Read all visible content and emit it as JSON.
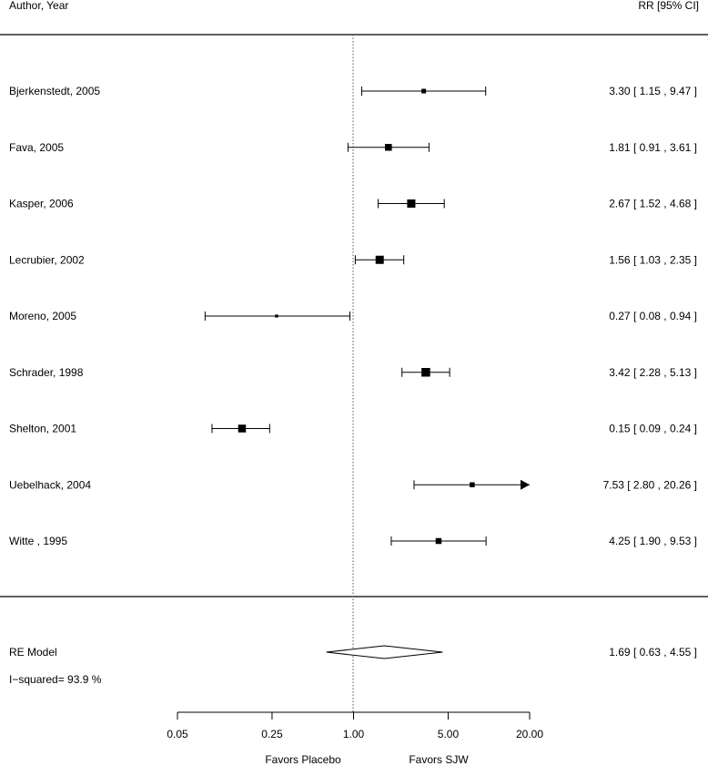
{
  "chart_data": {
    "type": "forest",
    "headers": {
      "left": "Author, Year",
      "right": "RR [95% CI]"
    },
    "measure": "RR",
    "log_scale": true,
    "x_ticks": [
      0.05,
      0.25,
      1.0,
      5.0,
      20.0
    ],
    "x_tick_labels": [
      "0.05",
      "0.25",
      "1.00",
      "5.00",
      "20.00"
    ],
    "xlim": [
      0.05,
      20.0
    ],
    "reference_line": 1.0,
    "favors": {
      "left": "Favors Placebo",
      "right": "Favors SJW"
    },
    "studies": [
      {
        "label": "Bjerkenstedt, 2005",
        "rr": 3.3,
        "lower": 1.15,
        "upper": 9.47,
        "ci_text": "3.30 [ 1.15 ,  9.47 ]",
        "weight": 0.7
      },
      {
        "label": "Fava, 2005",
        "rr": 1.81,
        "lower": 0.91,
        "upper": 3.61,
        "ci_text": "1.81 [ 0.91 ,  3.61 ]",
        "weight": 1.2
      },
      {
        "label": "Kasper, 2006",
        "rr": 2.67,
        "lower": 1.52,
        "upper": 4.68,
        "ci_text": "2.67 [ 1.52 ,  4.68 ]",
        "weight": 1.5
      },
      {
        "label": "Lecrubier, 2002",
        "rr": 1.56,
        "lower": 1.03,
        "upper": 2.35,
        "ci_text": "1.56 [ 1.03 ,  2.35 ]",
        "weight": 1.5
      },
      {
        "label": "Moreno, 2005",
        "rr": 0.27,
        "lower": 0.08,
        "upper": 0.94,
        "ci_text": "0.27 [ 0.08 ,  0.94 ]",
        "weight": 0.35
      },
      {
        "label": "Schrader, 1998",
        "rr": 3.42,
        "lower": 2.28,
        "upper": 5.13,
        "ci_text": "3.42 [ 2.28 ,  5.13 ]",
        "weight": 1.6
      },
      {
        "label": "Shelton, 2001",
        "rr": 0.15,
        "lower": 0.09,
        "upper": 0.24,
        "ci_text": "0.15 [ 0.09 ,  0.24 ]",
        "weight": 1.4
      },
      {
        "label": "Uebelhack, 2004",
        "rr": 7.53,
        "lower": 2.8,
        "upper": 20.26,
        "ci_text": "7.53 [ 2.80 , 20.26 ]",
        "weight": 0.8,
        "arrow_right": true
      },
      {
        "label": "Witte , 1995",
        "rr": 4.25,
        "lower": 1.9,
        "upper": 9.53,
        "ci_text": "4.25 [ 1.90 ,  9.53 ]",
        "weight": 1.0
      }
    ],
    "summary": {
      "label": "RE Model",
      "rr": 1.69,
      "lower": 0.63,
      "upper": 4.55,
      "ci_text": "1.69 [ 0.63 ,  4.55 ]",
      "heterogeneity": "I−squared= 93.9 %"
    }
  }
}
